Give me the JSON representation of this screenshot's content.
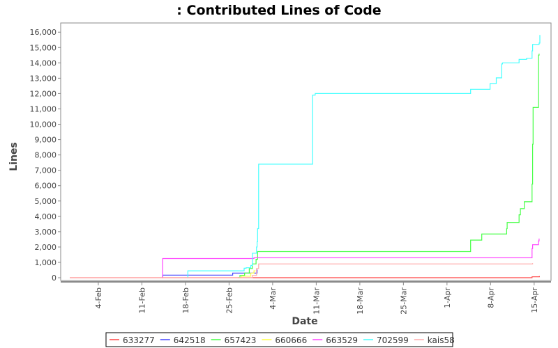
{
  "chart_data": {
    "type": "line",
    "step": true,
    "title": ": Contributed Lines of Code",
    "xlabel": "Date",
    "ylabel": "Lines",
    "xlim": [
      "Jan 28 23:00",
      "Apr 17 17:00"
    ],
    "ylim": [
      -180,
      16600
    ],
    "x_ticks": [
      "Feb 4",
      "Feb 11",
      "Feb 18",
      "Feb 25",
      "Mar 4",
      "Mar 11",
      "Mar 18",
      "Mar 25",
      "Apr 1",
      "Apr 8",
      "Apr 15"
    ],
    "x_tick_labels": [
      "4-Feb",
      "11-Feb",
      "18-Feb",
      "25-Feb",
      "4-Mar",
      "11-Mar",
      "18-Mar",
      "25-Mar",
      "1-Apr",
      "8-Apr",
      "15-Apr"
    ],
    "y_ticks": [
      0,
      1000,
      2000,
      3000,
      4000,
      5000,
      6000,
      7000,
      8000,
      9000,
      10000,
      11000,
      12000,
      13000,
      14000,
      15000,
      16000
    ],
    "y_tick_labels": [
      "0",
      "1,000",
      "2,000",
      "3,000",
      "4,000",
      "5,000",
      "6,000",
      "7,000",
      "8,000",
      "9,000",
      "10,000",
      "11,000",
      "12,000",
      "13,000",
      "14,000",
      "15,000",
      "16,000"
    ],
    "grid": false,
    "legend_position": "bottom",
    "series": [
      {
        "name": "633277",
        "color": "#ff4444",
        "points": [
          [
            "Jan 30 10:00",
            0
          ],
          [
            "Apr 14 16:00",
            60
          ],
          [
            "Apr 15 20:00",
            80
          ],
          [
            "Apr 15 22:00",
            80
          ]
        ]
      },
      {
        "name": "642518",
        "color": "#4444ff",
        "points": [
          [
            "Feb 14 07:00",
            0
          ],
          [
            "Feb 14 08:00",
            170
          ],
          [
            "Feb 25 14:00",
            300
          ],
          [
            "Mar 1 12:00",
            500
          ],
          [
            "Mar 1 14:00",
            500
          ]
        ]
      },
      {
        "name": "657423",
        "color": "#44ff44",
        "points": [
          [
            "Feb 26 10:00",
            0
          ],
          [
            "Feb 26 18:00",
            150
          ],
          [
            "Feb 27 12:00",
            300
          ],
          [
            "Feb 28 06:00",
            600
          ],
          [
            "Feb 28 18:00",
            900
          ],
          [
            "Mar 1 08:00",
            1200
          ],
          [
            "Mar 1 14:00",
            1700
          ],
          [
            "Apr 4 19:00",
            2450
          ],
          [
            "Apr 6 14:00",
            2850
          ],
          [
            "Apr 10 14:00",
            3200
          ],
          [
            "Apr 10 16:00",
            3600
          ],
          [
            "Apr 12 14:00",
            4100
          ],
          [
            "Apr 12 19:00",
            4500
          ],
          [
            "Apr 13 10:00",
            4950
          ],
          [
            "Apr 14 16:00",
            6100
          ],
          [
            "Apr 14 18:00",
            8700
          ],
          [
            "Apr 14 20:00",
            11100
          ],
          [
            "Apr 15 17:00",
            14500
          ],
          [
            "Apr 15 19:00",
            14600
          ]
        ]
      },
      {
        "name": "660666",
        "color": "#ffff44",
        "points": [
          [
            "Feb 26 12:00",
            0
          ],
          [
            "Feb 27 00:00",
            100
          ],
          [
            "Feb 28 12:00",
            300
          ],
          [
            "Mar 1 00:00",
            450
          ],
          [
            "Mar 1 06:00",
            450
          ]
        ]
      },
      {
        "name": "663529",
        "color": "#ff44ff",
        "points": [
          [
            "Feb 14 07:00",
            0
          ],
          [
            "Feb 14 08:00",
            1250
          ],
          [
            "Mar 1 00:00",
            1300
          ],
          [
            "Apr 14 16:00",
            1900
          ],
          [
            "Apr 14 18:00",
            2150
          ],
          [
            "Apr 15 17:00",
            2400
          ],
          [
            "Apr 15 19:00",
            2550
          ]
        ]
      },
      {
        "name": "702599",
        "color": "#44ffff",
        "points": [
          [
            "Feb 18 08:00",
            0
          ],
          [
            "Feb 18 09:00",
            450
          ],
          [
            "Feb 27 10:00",
            620
          ],
          [
            "Feb 27 18:00",
            650
          ],
          [
            "Feb 28 12:00",
            800
          ],
          [
            "Feb 28 18:00",
            1600
          ],
          [
            "Mar 1 10:00",
            2000
          ],
          [
            "Mar 1 12:00",
            2350
          ],
          [
            "Mar 1 14:00",
            3200
          ],
          [
            "Mar 1 18:00",
            7400
          ],
          [
            "Mar 10 10:00",
            11900
          ],
          [
            "Mar 10 20:00",
            12000
          ],
          [
            "Apr 4 19:00",
            12280
          ],
          [
            "Apr 7 22:00",
            12650
          ],
          [
            "Apr 8 22:00",
            13020
          ],
          [
            "Apr 9 19:00",
            13930
          ],
          [
            "Apr 9 22:00",
            14000
          ],
          [
            "Apr 12 14:00",
            14230
          ],
          [
            "Apr 13 19:00",
            14300
          ],
          [
            "Apr 14 16:00",
            14780
          ],
          [
            "Apr 14 18:00",
            15200
          ],
          [
            "Apr 15 19:00",
            15290
          ],
          [
            "Apr 15 22:00",
            15820
          ]
        ]
      },
      {
        "name": "kais58",
        "color": "#ffaaaa",
        "points": [
          [
            "Jan 30 10:00",
            0
          ],
          [
            "Feb 28 18:00",
            150
          ],
          [
            "Mar 1 10:00",
            600
          ],
          [
            "Mar 1 18:00",
            900
          ],
          [
            "Apr 14 18:00",
            950
          ]
        ]
      }
    ]
  }
}
